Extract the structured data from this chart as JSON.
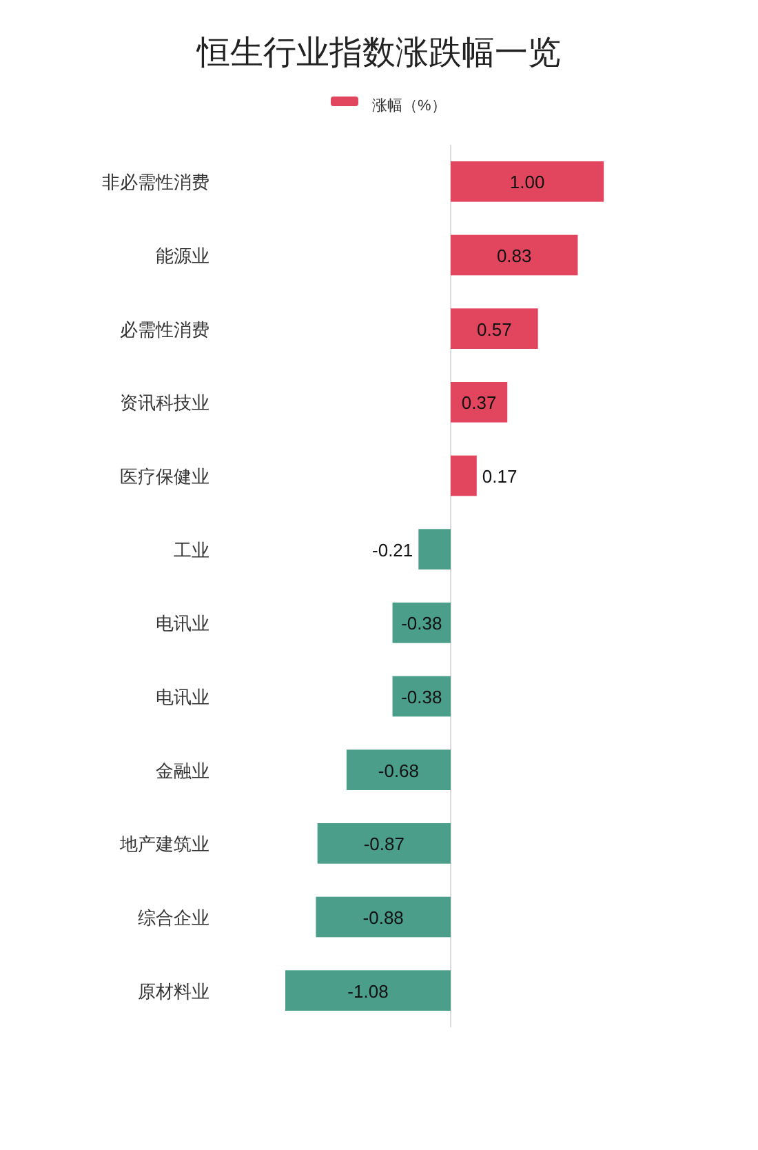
{
  "chart_data": {
    "type": "bar",
    "orientation": "horizontal",
    "title": "恒生行业指数涨跌幅一览",
    "legend": "top",
    "categories": [
      "非必需性消费",
      "能源业",
      "必需性消费",
      "资讯科技业",
      "医疗保健业",
      "工业",
      "电讯业",
      "电讯业",
      "金融业",
      "地产建筑业",
      "综合企业",
      "原材料业"
    ],
    "series": [
      {
        "name": "涨幅（%）",
        "color": "#e2465f",
        "colors": [
          "#e2465f",
          "#e2465f",
          "#e2465f",
          "#e2465f",
          "#e2465f",
          "#4a9e8a",
          "#4a9e8a",
          "#4a9e8a",
          "#4a9e8a",
          "#4a9e8a",
          "#4a9e8a",
          "#4a9e8a"
        ],
        "values": [
          1.0,
          0.83,
          0.57,
          0.37,
          0.17,
          -0.21,
          -0.38,
          -0.38,
          -0.68,
          -0.87,
          -0.88,
          -1.08
        ],
        "value_labels": [
          "1.00",
          "0.83",
          "0.57",
          "0.37",
          "0.17",
          "-0.21",
          "-0.38",
          "-0.38",
          "-0.68",
          "-0.87",
          "-0.88",
          "-1.08"
        ]
      }
    ]
  }
}
